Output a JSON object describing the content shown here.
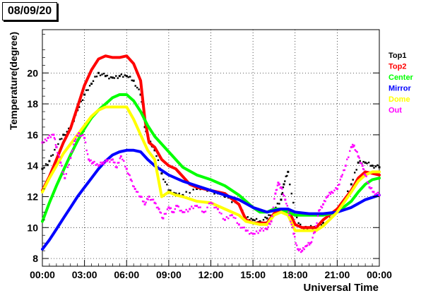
{
  "date_label": "08/09/20",
  "chart_data": {
    "type": "line",
    "xlabel": "Universal Time",
    "ylabel": "Temperature(degree)",
    "xlim": [
      0,
      24
    ],
    "ylim": [
      7.5,
      22.8
    ],
    "x_ticks": [
      {
        "value": 0,
        "label": "00:00"
      },
      {
        "value": 3,
        "label": "03:00"
      },
      {
        "value": 6,
        "label": "06:00"
      },
      {
        "value": 9,
        "label": "09:00"
      },
      {
        "value": 12,
        "label": "12:00"
      },
      {
        "value": 15,
        "label": "15:00"
      },
      {
        "value": 18,
        "label": "18:00"
      },
      {
        "value": 21,
        "label": "21:00"
      },
      {
        "value": 24,
        "label": "00:00"
      }
    ],
    "y_ticks": [
      {
        "value": 8,
        "label": "8"
      },
      {
        "value": 10,
        "label": "10"
      },
      {
        "value": 12,
        "label": "12"
      },
      {
        "value": 14,
        "label": "14"
      },
      {
        "value": 16,
        "label": "16"
      },
      {
        "value": 18,
        "label": "18"
      },
      {
        "value": 20,
        "label": "20"
      }
    ],
    "grid": true,
    "legend_position": "right",
    "series": [
      {
        "name": "Top1",
        "color": "#000000",
        "style": "points",
        "points": [
          [
            0,
            13.8
          ],
          [
            0.5,
            14.3
          ],
          [
            1,
            15.2
          ],
          [
            1.5,
            16.0
          ],
          [
            2,
            16.4
          ],
          [
            2.5,
            17.6
          ],
          [
            3,
            18.6
          ],
          [
            3.5,
            19.3
          ],
          [
            4,
            20.0
          ],
          [
            4.5,
            19.8
          ],
          [
            5,
            19.7
          ],
          [
            5.5,
            19.8
          ],
          [
            6,
            19.8
          ],
          [
            6.5,
            19.5
          ],
          [
            7,
            18.6
          ],
          [
            7.3,
            16.5
          ],
          [
            7.6,
            15.6
          ],
          [
            8,
            15.0
          ],
          [
            8.5,
            13.5
          ],
          [
            9,
            12.4
          ],
          [
            9.5,
            12.2
          ],
          [
            10,
            12.1
          ],
          [
            11,
            12.5
          ],
          [
            12,
            12.4
          ],
          [
            13,
            12.0
          ],
          [
            14,
            11.5
          ],
          [
            14.5,
            10.6
          ],
          [
            15,
            10.5
          ],
          [
            15.5,
            10.4
          ],
          [
            16,
            10.6
          ],
          [
            16.5,
            11.2
          ],
          [
            17,
            11.8
          ],
          [
            17.2,
            12.8
          ],
          [
            17.5,
            13.6
          ],
          [
            18,
            10.8
          ],
          [
            18.5,
            10.0
          ],
          [
            19,
            10.0
          ],
          [
            19.5,
            10.0
          ],
          [
            20,
            10.3
          ],
          [
            21,
            11.0
          ],
          [
            22,
            12.8
          ],
          [
            22.5,
            14.2
          ],
          [
            23,
            14.2
          ],
          [
            23.5,
            14.0
          ],
          [
            24,
            13.9
          ]
        ]
      },
      {
        "name": "Top2",
        "color": "#ff0000",
        "style": "line",
        "points": [
          [
            0,
            12.4
          ],
          [
            0.5,
            13.3
          ],
          [
            1,
            14.4
          ],
          [
            1.5,
            15.5
          ],
          [
            2,
            16.4
          ],
          [
            2.5,
            17.8
          ],
          [
            3,
            19.2
          ],
          [
            3.5,
            20.2
          ],
          [
            4,
            20.9
          ],
          [
            4.5,
            21.1
          ],
          [
            5,
            21.0
          ],
          [
            5.5,
            21.0
          ],
          [
            6,
            21.1
          ],
          [
            6.5,
            20.6
          ],
          [
            7,
            19.5
          ],
          [
            7.3,
            17.0
          ],
          [
            7.6,
            15.5
          ],
          [
            8,
            15.2
          ],
          [
            8.5,
            14.4
          ],
          [
            9,
            14.0
          ],
          [
            9.5,
            13.8
          ],
          [
            10,
            13.3
          ],
          [
            10.5,
            12.8
          ],
          [
            11,
            12.6
          ],
          [
            12,
            12.4
          ],
          [
            13,
            12.2
          ],
          [
            14,
            11.5
          ],
          [
            14.5,
            10.5
          ],
          [
            15,
            10.3
          ],
          [
            15.5,
            10.3
          ],
          [
            16,
            10.3
          ],
          [
            16.5,
            10.9
          ],
          [
            17,
            11.2
          ],
          [
            17.5,
            11.2
          ],
          [
            18,
            10.2
          ],
          [
            18.5,
            10.0
          ],
          [
            19,
            10.0
          ],
          [
            19.5,
            10.0
          ],
          [
            20,
            10.5
          ],
          [
            21,
            11.2
          ],
          [
            22,
            12.4
          ],
          [
            22.5,
            13.2
          ],
          [
            23,
            13.6
          ],
          [
            23.5,
            13.5
          ],
          [
            24,
            13.4
          ]
        ]
      },
      {
        "name": "Center",
        "color": "#00ff00",
        "style": "line",
        "points": [
          [
            0,
            10.4
          ],
          [
            0.5,
            11.6
          ],
          [
            1,
            12.7
          ],
          [
            1.5,
            13.7
          ],
          [
            2,
            14.7
          ],
          [
            2.5,
            15.6
          ],
          [
            3,
            16.4
          ],
          [
            3.5,
            17.1
          ],
          [
            4,
            17.6
          ],
          [
            4.5,
            18.0
          ],
          [
            5,
            18.4
          ],
          [
            5.5,
            18.6
          ],
          [
            6,
            18.6
          ],
          [
            6.5,
            18.2
          ],
          [
            7,
            17.5
          ],
          [
            7.5,
            16.6
          ],
          [
            8,
            15.9
          ],
          [
            8.5,
            15.4
          ],
          [
            9,
            14.9
          ],
          [
            9.5,
            14.4
          ],
          [
            10,
            13.9
          ],
          [
            11,
            13.4
          ],
          [
            12,
            13.1
          ],
          [
            13,
            12.7
          ],
          [
            14,
            12.1
          ],
          [
            15,
            11.3
          ],
          [
            15.5,
            11.0
          ],
          [
            16,
            11.0
          ],
          [
            16.5,
            11.2
          ],
          [
            17,
            11.2
          ],
          [
            17.5,
            11.0
          ],
          [
            18,
            10.8
          ],
          [
            19,
            10.8
          ],
          [
            20,
            10.8
          ],
          [
            21,
            11.0
          ],
          [
            22,
            11.7
          ],
          [
            22.5,
            12.3
          ],
          [
            23,
            12.8
          ],
          [
            23.5,
            13.1
          ],
          [
            24,
            13.2
          ]
        ]
      },
      {
        "name": "Mirror",
        "color": "#0000ff",
        "style": "line",
        "points": [
          [
            0,
            8.6
          ],
          [
            0.5,
            9.2
          ],
          [
            1,
            9.9
          ],
          [
            1.5,
            10.6
          ],
          [
            2,
            11.3
          ],
          [
            2.5,
            12.0
          ],
          [
            3,
            12.6
          ],
          [
            3.5,
            13.2
          ],
          [
            4,
            13.8
          ],
          [
            4.5,
            14.3
          ],
          [
            5,
            14.7
          ],
          [
            5.5,
            14.9
          ],
          [
            6,
            15.0
          ],
          [
            6.5,
            15.0
          ],
          [
            7,
            14.9
          ],
          [
            7.5,
            14.4
          ],
          [
            8,
            14.0
          ],
          [
            9,
            13.4
          ],
          [
            9.5,
            13.2
          ],
          [
            10,
            13.0
          ],
          [
            11,
            12.7
          ],
          [
            12,
            12.4
          ],
          [
            13,
            12.1
          ],
          [
            14,
            11.8
          ],
          [
            15,
            11.3
          ],
          [
            16,
            11.0
          ],
          [
            16.5,
            11.1
          ],
          [
            17,
            11.2
          ],
          [
            17.5,
            11.2
          ],
          [
            18,
            11.0
          ],
          [
            19,
            10.9
          ],
          [
            20,
            10.9
          ],
          [
            21,
            11.0
          ],
          [
            22,
            11.3
          ],
          [
            23,
            11.8
          ],
          [
            24,
            12.1
          ]
        ]
      },
      {
        "name": "Dome",
        "color": "#ffff00",
        "style": "line",
        "points": [
          [
            0,
            12.3
          ],
          [
            0.5,
            13.2
          ],
          [
            1,
            14.0
          ],
          [
            1.5,
            14.8
          ],
          [
            2,
            15.4
          ],
          [
            2.5,
            16.0
          ],
          [
            3,
            16.6
          ],
          [
            3.5,
            17.2
          ],
          [
            4,
            17.6
          ],
          [
            4.5,
            17.8
          ],
          [
            5,
            17.8
          ],
          [
            5.5,
            17.8
          ],
          [
            6,
            17.8
          ],
          [
            6.5,
            17.0
          ],
          [
            7,
            16.0
          ],
          [
            7.5,
            15.0
          ],
          [
            8,
            14.4
          ],
          [
            8.5,
            12.0
          ],
          [
            9,
            12.3
          ],
          [
            9.5,
            12.1
          ],
          [
            10,
            12.0
          ],
          [
            11,
            11.7
          ],
          [
            12,
            11.6
          ],
          [
            13,
            11.2
          ],
          [
            14,
            10.8
          ],
          [
            14.5,
            10.4
          ],
          [
            15,
            10.3
          ],
          [
            15.5,
            10.2
          ],
          [
            16,
            10.2
          ],
          [
            16.5,
            10.8
          ],
          [
            17,
            11.0
          ],
          [
            17.5,
            10.8
          ],
          [
            18,
            9.8
          ],
          [
            18.5,
            9.8
          ],
          [
            19,
            9.8
          ],
          [
            19.5,
            9.8
          ],
          [
            20,
            10.1
          ],
          [
            21,
            11.0
          ],
          [
            22,
            12.3
          ],
          [
            22.5,
            13.0
          ],
          [
            23,
            13.4
          ],
          [
            23.5,
            13.6
          ],
          [
            24,
            13.6
          ]
        ]
      },
      {
        "name": "Out",
        "color": "#ff00ff",
        "style": "points",
        "points": [
          [
            0,
            15.5
          ],
          [
            0.4,
            15.8
          ],
          [
            0.8,
            16.0
          ],
          [
            1,
            15.2
          ],
          [
            1.3,
            14.2
          ],
          [
            1.6,
            13.2
          ],
          [
            2,
            14.5
          ],
          [
            2.3,
            15.6
          ],
          [
            2.6,
            16.1
          ],
          [
            3,
            15.8
          ],
          [
            3.3,
            14.4
          ],
          [
            3.6,
            14.2
          ],
          [
            4,
            14.0
          ],
          [
            4.3,
            14.2
          ],
          [
            4.6,
            14.3
          ],
          [
            5,
            14.4
          ],
          [
            5.3,
            13.9
          ],
          [
            5.6,
            14.6
          ],
          [
            6,
            13.8
          ],
          [
            6.3,
            13.1
          ],
          [
            6.6,
            12.5
          ],
          [
            7,
            12.0
          ],
          [
            7.3,
            11.5
          ],
          [
            7.6,
            12.0
          ],
          [
            8,
            11.6
          ],
          [
            8.3,
            11.2
          ],
          [
            8.6,
            10.6
          ],
          [
            9,
            11.3
          ],
          [
            9.3,
            11.0
          ],
          [
            9.6,
            11.4
          ],
          [
            10,
            11.0
          ],
          [
            10.5,
            11.2
          ],
          [
            11,
            11.4
          ],
          [
            11.5,
            11.0
          ],
          [
            12,
            11.6
          ],
          [
            12.5,
            11.2
          ],
          [
            13,
            10.5
          ],
          [
            13.5,
            10.8
          ],
          [
            14,
            10.2
          ],
          [
            14.5,
            9.8
          ],
          [
            15,
            9.6
          ],
          [
            15.5,
            9.8
          ],
          [
            16,
            9.9
          ],
          [
            16.3,
            10.4
          ],
          [
            16.6,
            12.2
          ],
          [
            16.8,
            12.9
          ],
          [
            17,
            12.6
          ],
          [
            17.3,
            11.8
          ],
          [
            17.6,
            10.8
          ],
          [
            17.9,
            9.6
          ],
          [
            18.2,
            8.6
          ],
          [
            18.5,
            8.5
          ],
          [
            18.8,
            8.8
          ],
          [
            19.1,
            9.0
          ],
          [
            19.4,
            9.7
          ],
          [
            19.7,
            11.1
          ],
          [
            20,
            11.5
          ],
          [
            20.3,
            12.0
          ],
          [
            20.6,
            12.3
          ],
          [
            21,
            12.5
          ],
          [
            21.3,
            13.3
          ],
          [
            21.6,
            14.0
          ],
          [
            22,
            15.2
          ],
          [
            22.2,
            15.3
          ],
          [
            22.5,
            14.6
          ],
          [
            22.8,
            14.0
          ],
          [
            23,
            13.4
          ],
          [
            23.3,
            12.6
          ],
          [
            23.6,
            12.3
          ],
          [
            24,
            12.1
          ]
        ]
      }
    ]
  }
}
